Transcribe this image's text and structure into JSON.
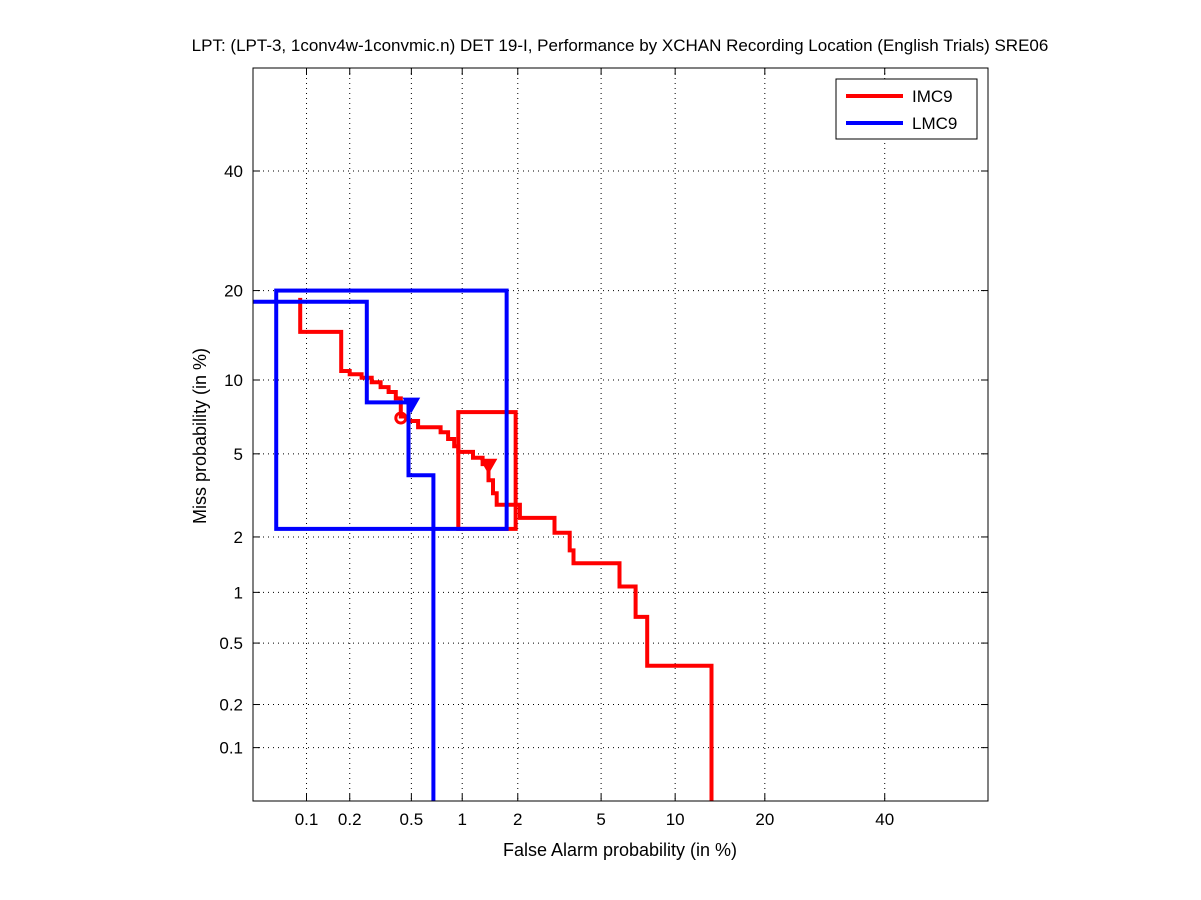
{
  "chart_data": {
    "type": "line",
    "title": "LPT: (LPT-3, 1conv4w-1convmic.n) DET 19-I,  Performance by XCHAN Recording Location (English Trials) SRE06",
    "xlabel": "False Alarm probability (in %)",
    "ylabel": "Miss probability (in %)",
    "x_scale": "normal-deviate",
    "y_scale": "normal-deviate",
    "xlim": [
      0.04,
      60
    ],
    "ylim": [
      0.04,
      60
    ],
    "x_ticks": [
      0.1,
      0.2,
      0.5,
      1,
      2,
      5,
      10,
      20,
      40
    ],
    "x_tick_labels": [
      "0.1",
      "0.2",
      "0.5",
      "1",
      "2",
      "5",
      "10",
      "20",
      "40"
    ],
    "y_ticks": [
      0.1,
      0.2,
      0.5,
      1,
      2,
      5,
      10,
      20,
      40
    ],
    "y_tick_labels": [
      "0.1",
      "0.2",
      "0.5",
      "1",
      "2",
      "5",
      "10",
      "20",
      "40"
    ],
    "grid": true,
    "legend_position": "top-right",
    "legend": [
      "IMC9",
      "LMC9"
    ],
    "series": [
      {
        "name": "IMC9",
        "color": "#ff0000",
        "points": [
          [
            0.09,
            19
          ],
          [
            0.09,
            14.8
          ],
          [
            0.175,
            14.8
          ],
          [
            0.175,
            10.8
          ],
          [
            0.2,
            10.8
          ],
          [
            0.2,
            10.5
          ],
          [
            0.24,
            10.5
          ],
          [
            0.24,
            10.2
          ],
          [
            0.28,
            10.2
          ],
          [
            0.28,
            9.8
          ],
          [
            0.32,
            9.8
          ],
          [
            0.32,
            9.4
          ],
          [
            0.36,
            9.4
          ],
          [
            0.36,
            9.0
          ],
          [
            0.4,
            9.0
          ],
          [
            0.4,
            8.5
          ],
          [
            0.43,
            8.5
          ],
          [
            0.43,
            7.2
          ],
          [
            0.48,
            7.2
          ],
          [
            0.48,
            6.9
          ],
          [
            0.55,
            6.9
          ],
          [
            0.55,
            6.5
          ],
          [
            0.75,
            6.5
          ],
          [
            0.75,
            6.2
          ],
          [
            0.83,
            6.2
          ],
          [
            0.83,
            5.8
          ],
          [
            0.9,
            5.8
          ],
          [
            0.9,
            5.4
          ],
          [
            0.95,
            5.4
          ],
          [
            0.95,
            5.1
          ],
          [
            1.15,
            5.1
          ],
          [
            1.15,
            4.8
          ],
          [
            1.3,
            4.8
          ],
          [
            1.3,
            4.5
          ],
          [
            1.4,
            4.5
          ],
          [
            1.4,
            3.8
          ],
          [
            1.48,
            3.8
          ],
          [
            1.48,
            3.3
          ],
          [
            1.55,
            3.3
          ],
          [
            1.55,
            2.9
          ],
          [
            2.05,
            2.9
          ],
          [
            2.05,
            2.5
          ],
          [
            3.05,
            2.5
          ],
          [
            3.05,
            2.1
          ],
          [
            3.6,
            2.1
          ],
          [
            3.6,
            1.7
          ],
          [
            3.75,
            1.7
          ],
          [
            3.75,
            1.45
          ],
          [
            6.0,
            1.45
          ],
          [
            6.0,
            1.08
          ],
          [
            7.0,
            1.08
          ],
          [
            7.0,
            0.72
          ],
          [
            7.8,
            0.72
          ],
          [
            7.8,
            0.36
          ],
          [
            13.5,
            0.36
          ],
          [
            13.5,
            0.04
          ]
        ],
        "marker_circle": [
          0.43,
          7.1
        ],
        "marker_triangle": [
          1.4,
          4.4
        ],
        "box": {
          "x": [
            0.95,
            1.95
          ],
          "y": [
            2.2,
            7.5
          ]
        }
      },
      {
        "name": "LMC9",
        "color": "#0000ff",
        "points": [
          [
            0.04,
            18.5
          ],
          [
            0.26,
            18.5
          ],
          [
            0.26,
            8.2
          ],
          [
            0.48,
            8.2
          ],
          [
            0.48,
            4.0
          ],
          [
            0.68,
            4.0
          ],
          [
            0.68,
            0.04
          ]
        ],
        "marker_triangle": [
          0.5,
          8.0
        ],
        "box": {
          "x": [
            0.06,
            1.75
          ],
          "y": [
            2.2,
            20
          ]
        }
      }
    ]
  }
}
